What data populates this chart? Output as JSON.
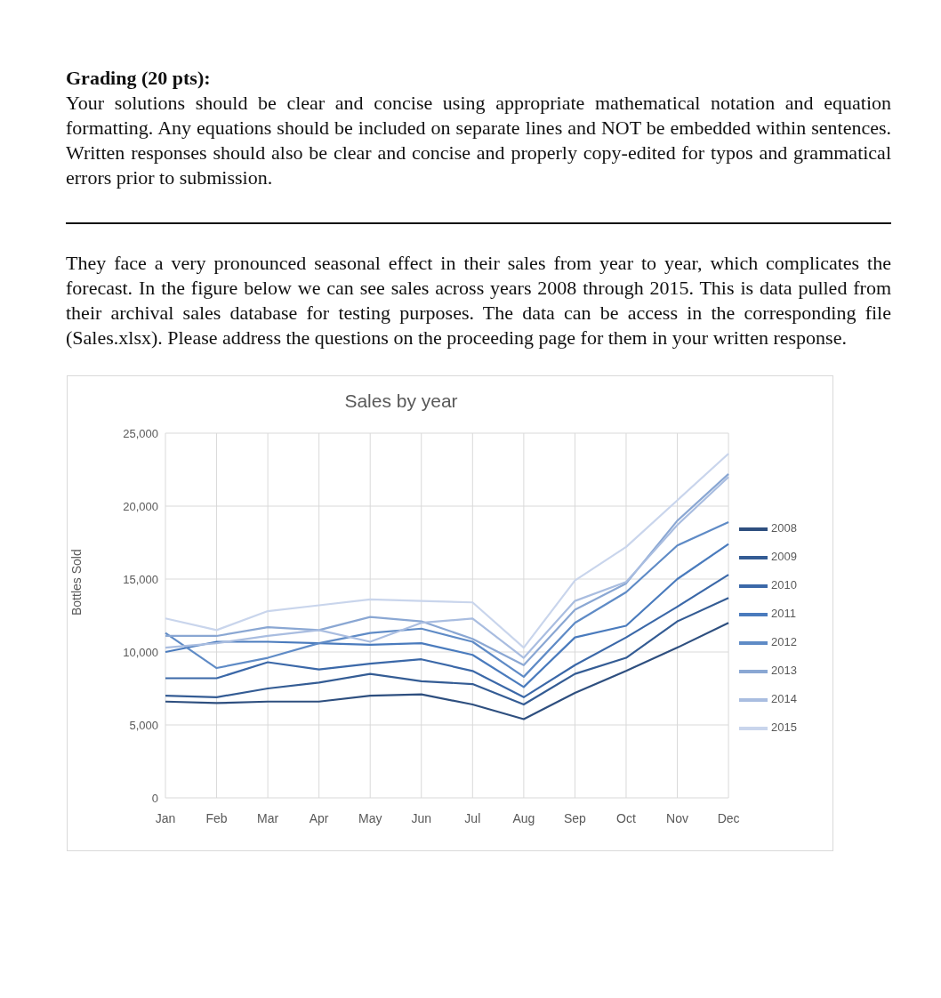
{
  "chart_data": {
    "type": "line",
    "title": "Sales by year",
    "ylabel": "Bottles Sold",
    "annotations": [
      "Grading (20 pts):",
      "Your solutions should be clear and concise using appropriate mathematical notation and equation formatting.  Any equations should be included on separate lines and NOT be embedded within sentences. Written responses should also be clear and concise and properly copy-edited for typos and grammatical errors prior to submission.",
      "They face a very pronounced seasonal effect in their sales from year to year, which complicates the forecast. In the figure below we can see sales across years 2008 through 2015. This is data pulled from their archival sales database for testing purposes. The data can be access in the corresponding file (Sales.xlsx). Please address the questions on the proceeding page for them in your written response."
    ],
    "categories": [
      "Jan",
      "Feb",
      "Mar",
      "Apr",
      "May",
      "Jun",
      "Jul",
      "Aug",
      "Sep",
      "Oct",
      "Nov",
      "Dec"
    ],
    "series": [
      {
        "name": "2008",
        "color": "#2e4f7f",
        "values": [
          6600,
          6500,
          6600,
          6600,
          7000,
          7100,
          6400,
          5400,
          7200,
          8700,
          10300,
          12000
        ]
      },
      {
        "name": "2009",
        "color": "#345c94",
        "values": [
          7000,
          6900,
          7500,
          7900,
          8500,
          8000,
          7800,
          6400,
          8500,
          9600,
          12100,
          13700
        ]
      },
      {
        "name": "2010",
        "color": "#3b68a8",
        "values": [
          8200,
          8200,
          9300,
          8800,
          9200,
          9500,
          8700,
          6900,
          9100,
          11000,
          13100,
          15300
        ]
      },
      {
        "name": "2011",
        "color": "#4a7bbd",
        "values": [
          10000,
          10700,
          10700,
          10600,
          10500,
          10600,
          9800,
          7600,
          11000,
          11800,
          15000,
          17400
        ]
      },
      {
        "name": "2012",
        "color": "#5f8bc6",
        "values": [
          11300,
          8900,
          9600,
          10600,
          11300,
          11600,
          10700,
          8300,
          12000,
          14100,
          17300,
          18900
        ]
      },
      {
        "name": "2013",
        "color": "#8aa7d3",
        "values": [
          11100,
          11100,
          11700,
          11500,
          12400,
          12100,
          10900,
          9100,
          12900,
          14700,
          19000,
          22200
        ]
      },
      {
        "name": "2014",
        "color": "#a9bde0",
        "values": [
          10300,
          10600,
          11100,
          11500,
          10700,
          12000,
          12300,
          9600,
          13500,
          14800,
          18700,
          22000
        ]
      },
      {
        "name": "2015",
        "color": "#c9d5ec",
        "values": [
          12300,
          11500,
          12800,
          13200,
          13600,
          13500,
          13400,
          10300,
          14900,
          17200,
          20400,
          23600
        ]
      }
    ],
    "ylim": [
      0,
      25000
    ],
    "yticks": [
      0,
      {
        "value": 5000,
        "label": "5,000"
      },
      {
        "value": 10000,
        "label": "10,000"
      },
      {
        "value": 15000,
        "label": "15,000"
      },
      {
        "value": 20000,
        "label": "20,000"
      },
      {
        "value": 25000,
        "label": "25,000"
      }
    ],
    "grid": true,
    "legend": "right",
    "marker": "none",
    "line_style": "solid"
  }
}
